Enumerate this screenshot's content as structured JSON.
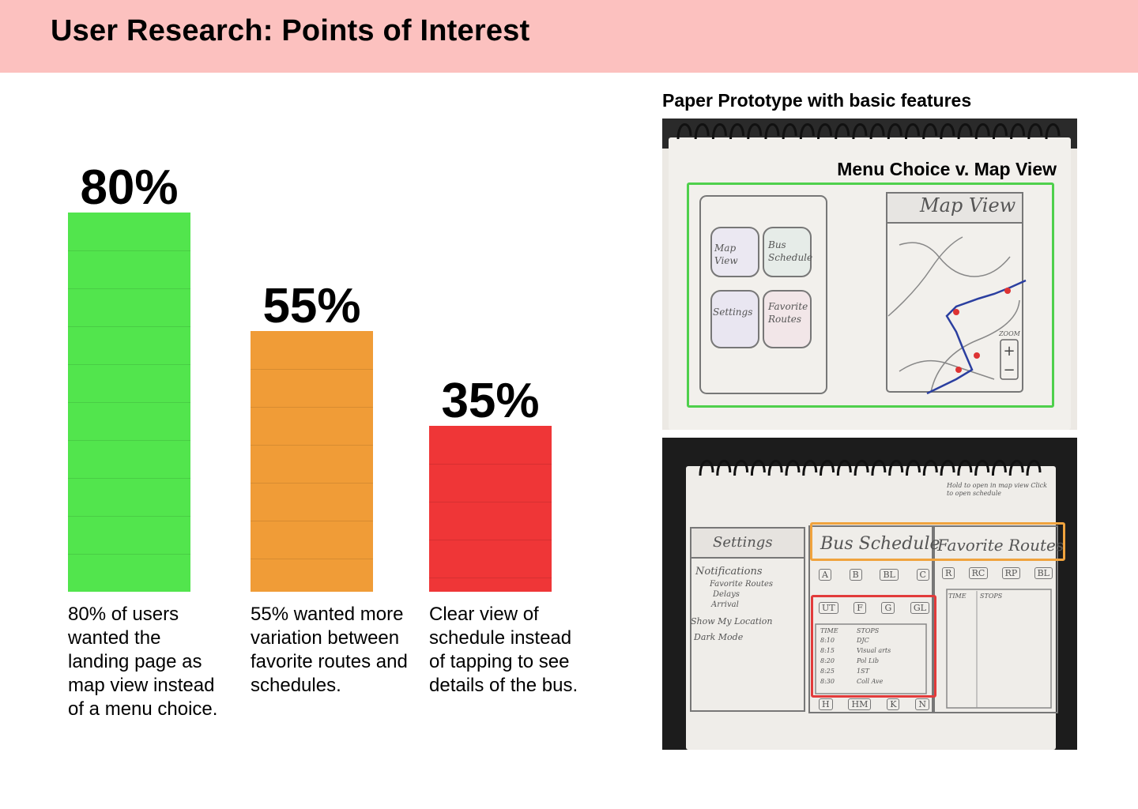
{
  "header": {
    "title": "User Research: Points of Interest"
  },
  "chart_data": {
    "type": "bar",
    "categories": [
      "80% of users wanted the landing page as map view instead of a menu choice.",
      "55% wanted more variation between favorite routes and schedules.",
      "Clear view of schedule instead of tapping to see details of the bus."
    ],
    "values": [
      80,
      55,
      35
    ],
    "labels": [
      "80%",
      "55%",
      "35%"
    ],
    "colors": [
      "#52e54d",
      "#f09c37",
      "#ef3637"
    ],
    "ylim": [
      0,
      100
    ],
    "grid": true
  },
  "prototype": {
    "caption": "Paper Prototype with basic features",
    "photo1": {
      "label": "Menu Choice v. Map View",
      "highlight_color": "#4fd04c",
      "sketch": {
        "map_view": "Map View",
        "map_view_btn": "Map View",
        "bus_schedule_btn": "Bus Schedule",
        "settings_btn": "Settings",
        "favorite_routes_btn": "Favorite Routes",
        "zoom": "ZOOM"
      }
    },
    "photo2": {
      "highlight_colors": [
        "#f0a33e",
        "#e23b3b"
      ],
      "sketch": {
        "note": "Hold to open in map view Click to open schedule",
        "settings": "Settings",
        "bus_schedule": "Bus Schedule",
        "favorite_routes": "Favorite Routes",
        "notifications": "Notifications",
        "favorite_routes_item": "Favorite Routes",
        "delays": "Delays",
        "arrival": "Arrival",
        "show_location": "Show My Location",
        "dark_mode": "Dark Mode",
        "time": "TIME",
        "stops": "STOPS",
        "routes_a": [
          "A",
          "B",
          "BL",
          "C"
        ],
        "routes_b": [
          "UT",
          "F",
          "G",
          "GL"
        ],
        "routes_c": [
          "H",
          "HM",
          "K",
          "N"
        ],
        "routes_fav": [
          "R",
          "RC",
          "RP",
          "BL"
        ],
        "schedule_rows": [
          [
            "8:10",
            "DJC"
          ],
          [
            "8:15",
            "Visual arts"
          ],
          [
            "8:20",
            "Pol Lib"
          ],
          [
            "8:25",
            "1ST"
          ],
          [
            "8:30",
            "Coll Ave"
          ]
        ]
      }
    }
  }
}
